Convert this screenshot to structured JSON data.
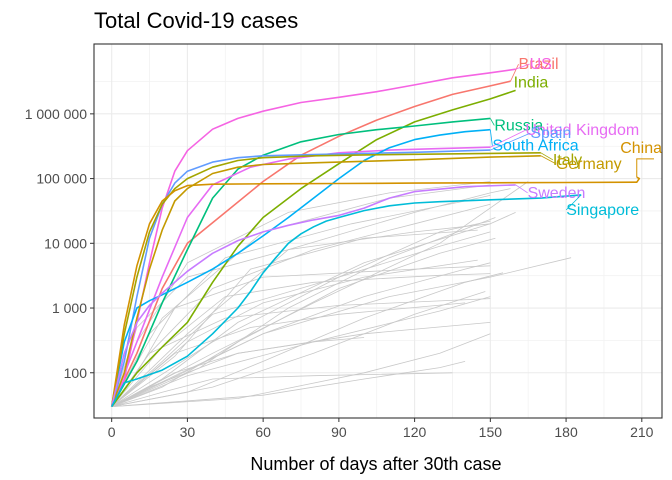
{
  "chart_data": {
    "type": "line",
    "title": "Total Covid-19 cases",
    "xlabel": "Number of days after 30th case",
    "ylabel": "",
    "y_scale": "log10",
    "xlim": [
      -7,
      218
    ],
    "ylim": [
      20,
      12000000
    ],
    "x_ticks": [
      0,
      30,
      60,
      90,
      120,
      150,
      180,
      210
    ],
    "x_tick_labels": [
      "0",
      "30",
      "60",
      "90",
      "120",
      "150",
      "180",
      "210"
    ],
    "y_ticks": [
      100,
      1000,
      10000,
      100000,
      1000000
    ],
    "y_tick_labels": [
      "100",
      "1 000",
      "10 000",
      "100 000",
      "1 000 000"
    ],
    "grid": true,
    "legend": "none",
    "background_series_color": "#c8c8c8",
    "background_series": [
      {
        "x": [
          0,
          20,
          50,
          90,
          130,
          152
        ],
        "values": [
          30,
          60,
          300,
          2000,
          7000,
          12000
        ]
      },
      {
        "x": [
          0,
          15,
          40,
          80,
          120,
          150
        ],
        "values": [
          30,
          200,
          2000,
          8000,
          20000,
          40000
        ]
      },
      {
        "x": [
          0,
          25,
          60,
          100,
          140,
          150
        ],
        "values": [
          30,
          90,
          400,
          1500,
          4000,
          5000
        ]
      },
      {
        "x": [
          0,
          10,
          30,
          70,
          110,
          150
        ],
        "values": [
          30,
          300,
          5000,
          30000,
          60000,
          90000
        ]
      },
      {
        "x": [
          0,
          30,
          60,
          100,
          140,
          155
        ],
        "values": [
          30,
          50,
          150,
          700,
          2500,
          3500
        ]
      },
      {
        "x": [
          0,
          20,
          40,
          90,
          130,
          150
        ],
        "values": [
          30,
          150,
          800,
          3000,
          9000,
          15000
        ]
      },
      {
        "x": [
          0,
          15,
          45,
          95,
          140,
          150
        ],
        "values": [
          30,
          400,
          6000,
          20000,
          45000,
          55000
        ]
      },
      {
        "x": [
          0,
          40,
          80,
          120,
          148
        ],
        "values": [
          30,
          60,
          200,
          800,
          1800
        ]
      },
      {
        "x": [
          0,
          30,
          60,
          100,
          145
        ],
        "values": [
          30,
          300,
          1200,
          3000,
          5500
        ]
      },
      {
        "x": [
          0,
          20,
          50,
          100,
          150,
          160
        ],
        "values": [
          30,
          80,
          600,
          5000,
          20000,
          30000
        ]
      },
      {
        "x": [
          0,
          20,
          60,
          110,
          150
        ],
        "values": [
          30,
          700,
          15000,
          50000,
          80000
        ]
      },
      {
        "x": [
          0,
          50,
          100,
          130,
          150
        ],
        "values": [
          30,
          40,
          100,
          200,
          400
        ]
      },
      {
        "x": [
          0,
          25,
          55,
          90,
          140
        ],
        "values": [
          30,
          200,
          500,
          800,
          1200
        ]
      },
      {
        "x": [
          0,
          10,
          25,
          60,
          120,
          150
        ],
        "values": [
          30,
          100,
          1000,
          3000,
          4000,
          4500
        ]
      },
      {
        "x": [
          0,
          35,
          70,
          110,
          152
        ],
        "values": [
          30,
          120,
          1000,
          6000,
          25000
        ]
      },
      {
        "x": [
          0,
          15,
          50,
          100,
          150
        ],
        "values": [
          30,
          60,
          200,
          400,
          600
        ]
      },
      {
        "x": [
          0,
          20,
          45,
          80,
          130,
          150
        ],
        "values": [
          30,
          250,
          1500,
          2500,
          3200,
          3400
        ]
      },
      {
        "x": [
          0,
          60,
          100,
          130,
          140
        ],
        "values": [
          30,
          45,
          80,
          120,
          150
        ]
      },
      {
        "x": [
          0,
          30,
          70,
          120,
          150,
          158
        ],
        "values": [
          30,
          400,
          8000,
          30000,
          60000,
          70000
        ]
      },
      {
        "x": [
          0,
          25,
          50,
          80,
          100
        ],
        "values": [
          30,
          100,
          200,
          300,
          350
        ]
      },
      {
        "x": [
          0,
          15,
          45,
          90,
          150
        ],
        "values": [
          30,
          200,
          700,
          1100,
          1400
        ]
      },
      {
        "x": [
          0,
          40,
          80,
          130,
          165
        ],
        "values": [
          30,
          200,
          1200,
          10000,
          90000
        ]
      },
      {
        "x": [
          0,
          20,
          40,
          80,
          135
        ],
        "values": [
          30,
          50,
          80,
          90,
          100
        ]
      },
      {
        "x": [
          0,
          10,
          30,
          70,
          120,
          150
        ],
        "values": [
          30,
          500,
          3000,
          8000,
          15000,
          20000
        ]
      },
      {
        "x": [
          0,
          30,
          80,
          130,
          150
        ],
        "values": [
          30,
          90,
          300,
          900,
          1500
        ]
      },
      {
        "x": [
          0,
          40,
          90,
          130,
          150
        ],
        "values": [
          30,
          300,
          3000,
          15000,
          22000
        ]
      },
      {
        "x": [
          0,
          20,
          60,
          110,
          150,
          182
        ],
        "values": [
          30,
          70,
          400,
          1500,
          3000,
          6000
        ]
      },
      {
        "x": [
          0,
          25,
          55,
          100,
          145
        ],
        "values": [
          30,
          180,
          4000,
          12000,
          16000
        ]
      }
    ],
    "series": [
      {
        "name": "Brazil",
        "color": "#F8766D",
        "x": [
          0,
          10,
          20,
          30,
          45,
          60,
          75,
          90,
          105,
          120,
          135,
          150,
          158
        ],
        "values": [
          30,
          200,
          2000,
          10000,
          30000,
          90000,
          230000,
          450000,
          800000,
          1300000,
          2000000,
          2700000,
          3200000
        ]
      },
      {
        "name": "US",
        "color": "#F564E3",
        "x": [
          0,
          5,
          10,
          15,
          20,
          25,
          30,
          40,
          50,
          60,
          75,
          90,
          105,
          120,
          135,
          150,
          160
        ],
        "values": [
          30,
          80,
          600,
          5000,
          35000,
          130000,
          270000,
          580000,
          850000,
          1100000,
          1500000,
          1800000,
          2200000,
          2800000,
          3600000,
          4300000,
          4900000
        ]
      },
      {
        "name": "India",
        "color": "#7CAE00",
        "x": [
          0,
          10,
          20,
          30,
          40,
          50,
          60,
          75,
          90,
          105,
          120,
          135,
          150,
          160
        ],
        "values": [
          30,
          100,
          250,
          600,
          2500,
          9000,
          25000,
          70000,
          170000,
          400000,
          750000,
          1150000,
          1700000,
          2300000
        ]
      },
      {
        "name": "Russia",
        "color": "#00BF7D",
        "x": [
          0,
          10,
          20,
          30,
          40,
          50,
          60,
          75,
          90,
          105,
          120,
          135,
          150
        ],
        "values": [
          30,
          150,
          1200,
          8000,
          50000,
          140000,
          230000,
          370000,
          480000,
          570000,
          650000,
          750000,
          850000
        ]
      },
      {
        "name": "United Kingdom",
        "color": "#E76BF3",
        "x": [
          0,
          10,
          20,
          30,
          40,
          55,
          70,
          90,
          110,
          130,
          150
        ],
        "values": [
          30,
          300,
          3000,
          25000,
          80000,
          150000,
          200000,
          250000,
          275000,
          290000,
          305000
        ]
      },
      {
        "name": "Spain",
        "color": "#619CFF",
        "x": [
          0,
          5,
          10,
          15,
          20,
          25,
          30,
          40,
          50,
          60,
          80,
          100,
          120,
          150
        ],
        "values": [
          30,
          150,
          1500,
          12000,
          40000,
          85000,
          130000,
          180000,
          210000,
          225000,
          235000,
          245000,
          255000,
          275000
        ]
      },
      {
        "name": "South Africa",
        "color": "#00B0F6",
        "x": [
          0,
          5,
          10,
          15,
          20,
          30,
          40,
          50,
          60,
          70,
          80,
          90,
          100,
          110,
          120,
          130,
          140,
          150
        ],
        "values": [
          30,
          300,
          1000,
          1300,
          1600,
          2500,
          4000,
          7000,
          13000,
          25000,
          50000,
          100000,
          190000,
          300000,
          400000,
          470000,
          530000,
          570000
        ]
      },
      {
        "name": "Italy",
        "color": "#A3A500",
        "x": [
          0,
          5,
          10,
          15,
          20,
          25,
          30,
          40,
          50,
          60,
          80,
          100,
          120,
          150,
          170
        ],
        "values": [
          30,
          400,
          3000,
          15000,
          40000,
          70000,
          100000,
          150000,
          190000,
          210000,
          225000,
          232000,
          237000,
          245000,
          250000
        ]
      },
      {
        "name": "China",
        "color": "#D39200",
        "x": [
          0,
          5,
          10,
          15,
          20,
          25,
          30,
          40,
          60,
          90,
          120,
          150,
          180,
          208,
          209,
          208
        ],
        "values": [
          30,
          550,
          4500,
          20000,
          45000,
          65000,
          78000,
          82000,
          83000,
          84000,
          85000,
          86000,
          87000,
          88000,
          100000,
          105000
        ]
      },
      {
        "name": "Germany",
        "color": "#C49A00",
        "x": [
          0,
          5,
          10,
          15,
          20,
          25,
          30,
          40,
          50,
          60,
          80,
          100,
          120,
          150,
          170
        ],
        "values": [
          30,
          100,
          700,
          4000,
          16000,
          45000,
          70000,
          120000,
          150000,
          165000,
          175000,
          185000,
          195000,
          215000,
          225000
        ]
      },
      {
        "name": "Sweden",
        "color": "#C77CFF",
        "x": [
          0,
          5,
          10,
          15,
          20,
          30,
          40,
          50,
          60,
          70,
          80,
          90,
          100,
          110,
          120,
          140,
          160
        ],
        "values": [
          30,
          200,
          600,
          1100,
          1700,
          3700,
          7000,
          11000,
          15000,
          19000,
          23000,
          27000,
          35000,
          50000,
          63000,
          75000,
          80000
        ]
      },
      {
        "name": "Singapore",
        "color": "#00BCD8",
        "x": [
          0,
          5,
          10,
          20,
          30,
          40,
          50,
          55,
          60,
          65,
          70,
          75,
          80,
          85,
          90,
          100,
          110,
          120,
          130,
          150,
          170,
          186
        ],
        "values": [
          30,
          70,
          80,
          110,
          180,
          400,
          1000,
          1800,
          3500,
          6000,
          10000,
          14000,
          18000,
          22000,
          25000,
          32000,
          38000,
          42000,
          44000,
          47000,
          50000,
          56000
        ]
      }
    ],
    "annotations": [
      {
        "series": "Brazil",
        "text": "Brazil"
      },
      {
        "series": "US",
        "text": "US"
      },
      {
        "series": "India",
        "text": "India"
      },
      {
        "series": "Russia",
        "text": "Russia"
      },
      {
        "series": "United Kingdom",
        "text": "United Kingdom"
      },
      {
        "series": "Spain",
        "text": "Spain"
      },
      {
        "series": "South Africa",
        "text": "South Africa"
      },
      {
        "series": "China",
        "text": "China"
      },
      {
        "series": "Italy",
        "text": "Italy"
      },
      {
        "series": "Germany",
        "text": "Germany"
      },
      {
        "series": "Sweden",
        "text": "Sweden"
      },
      {
        "series": "Singapore",
        "text": "Singapore"
      }
    ]
  }
}
